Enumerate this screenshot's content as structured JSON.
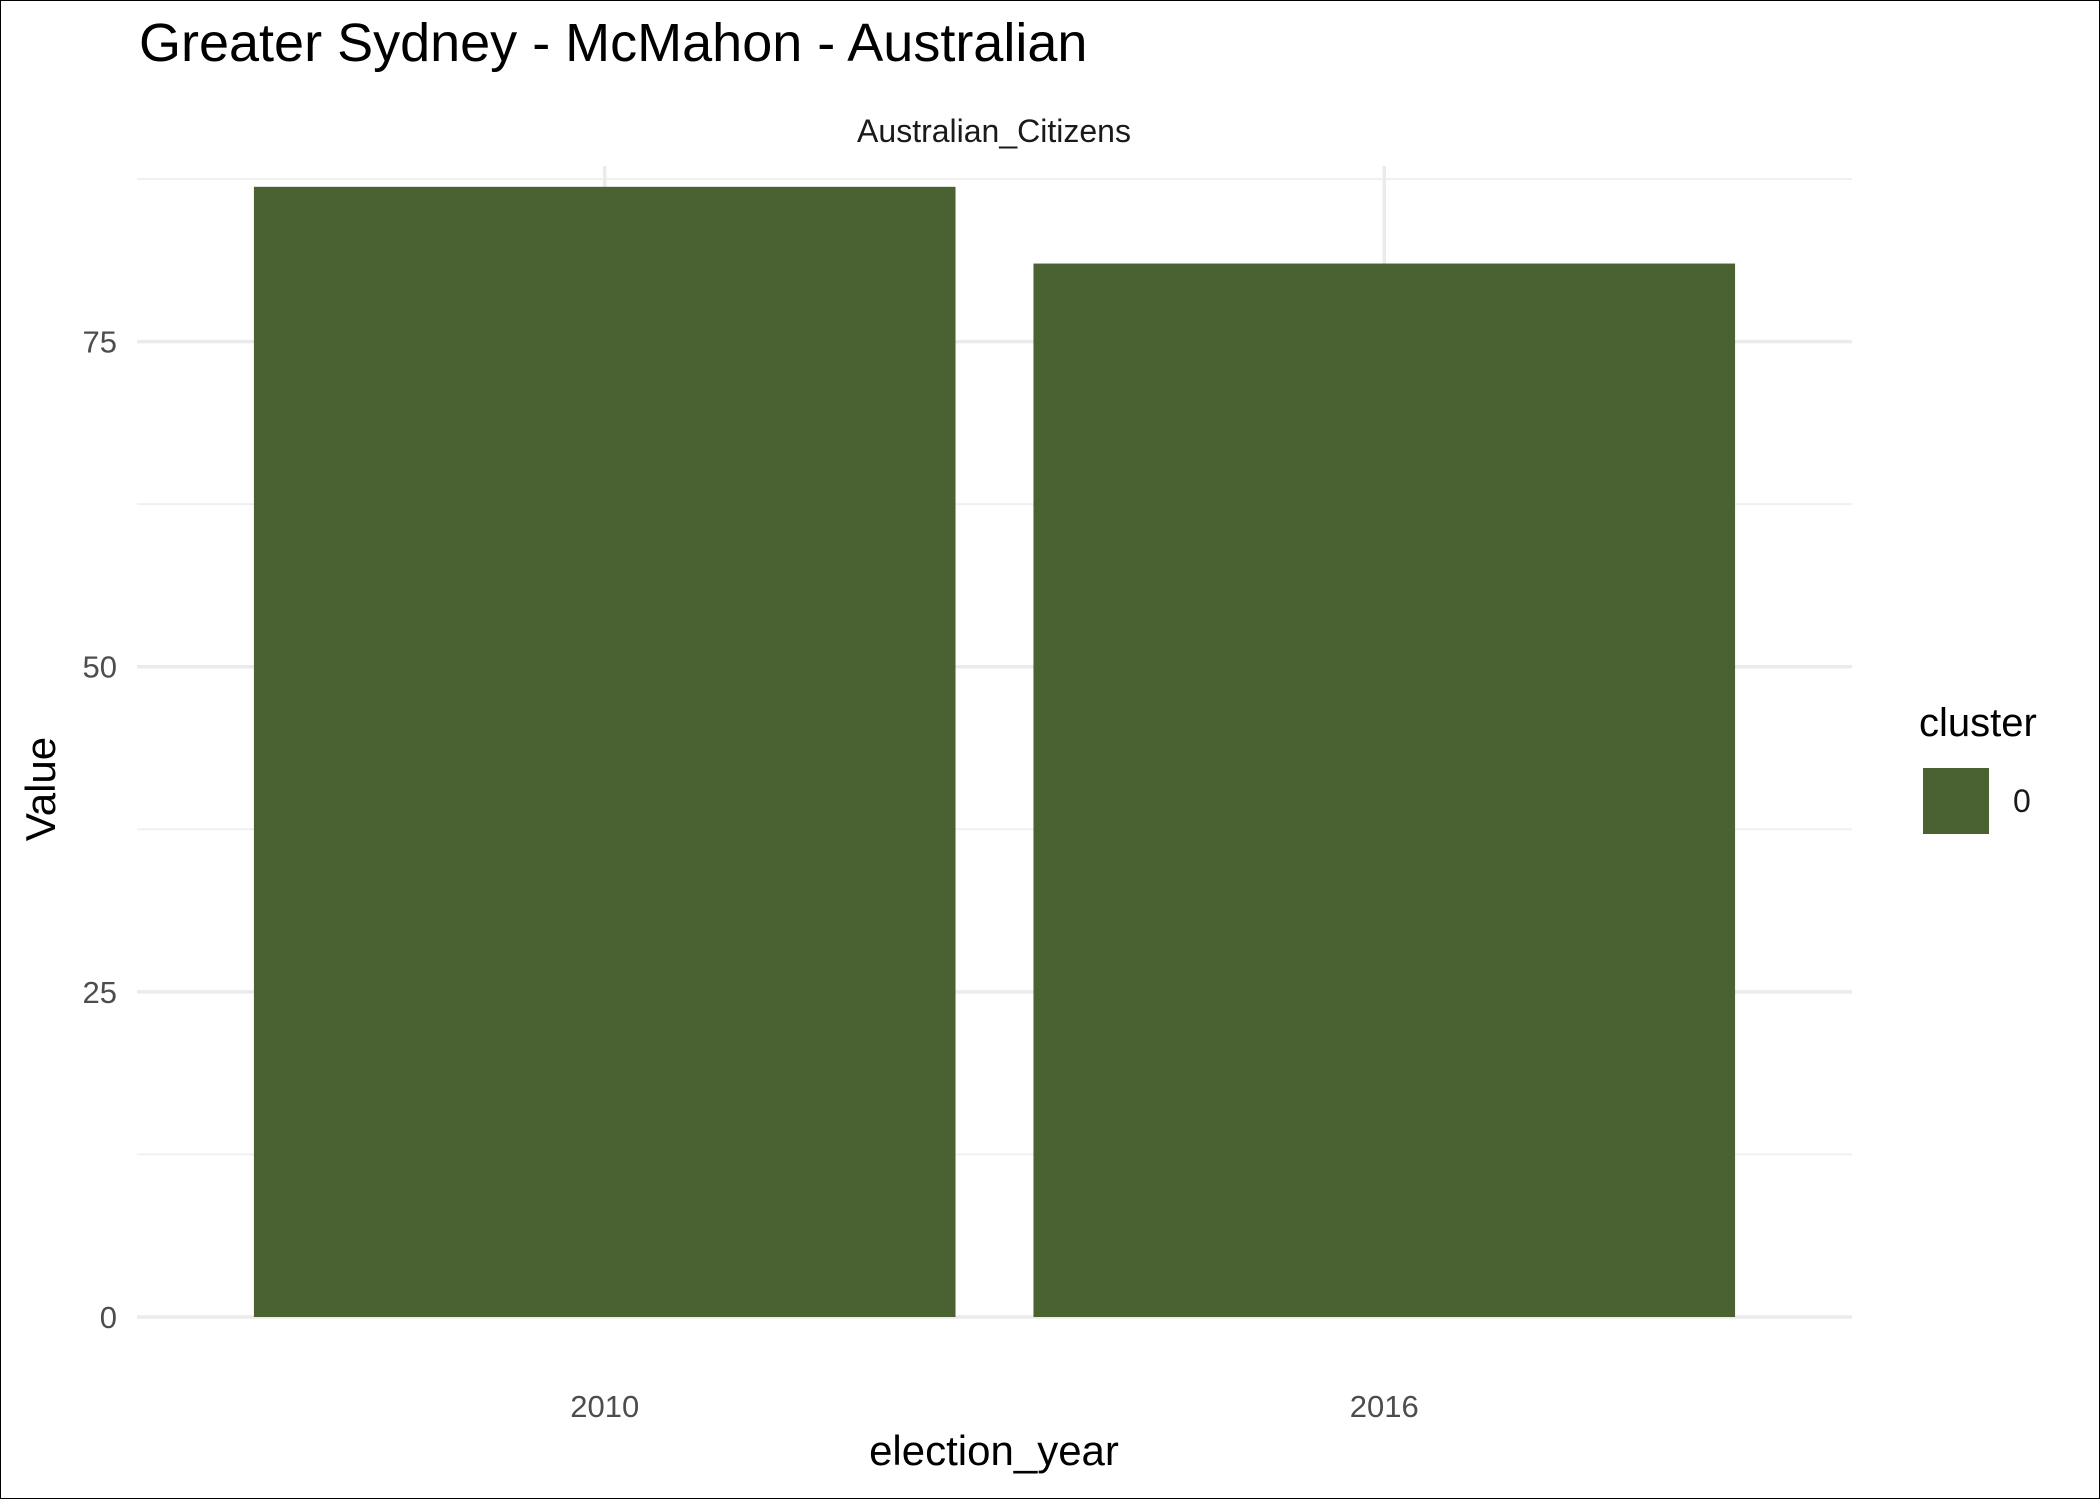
{
  "chart_data": {
    "type": "bar",
    "title": "Greater Sydney - McMahon - Australian",
    "facet_label": "Australian_Citizens",
    "xlabel": "election_year",
    "ylabel": "Value",
    "categories": [
      "2010",
      "2016"
    ],
    "series": [
      {
        "name": "0",
        "values": [
          86.9,
          81.0
        ],
        "color": "#4a6132"
      }
    ],
    "ylim": [
      0,
      88.5
    ],
    "yticks": [
      0,
      25,
      50,
      75
    ],
    "grid": true,
    "legend": {
      "title": "cluster",
      "position": "right"
    }
  }
}
